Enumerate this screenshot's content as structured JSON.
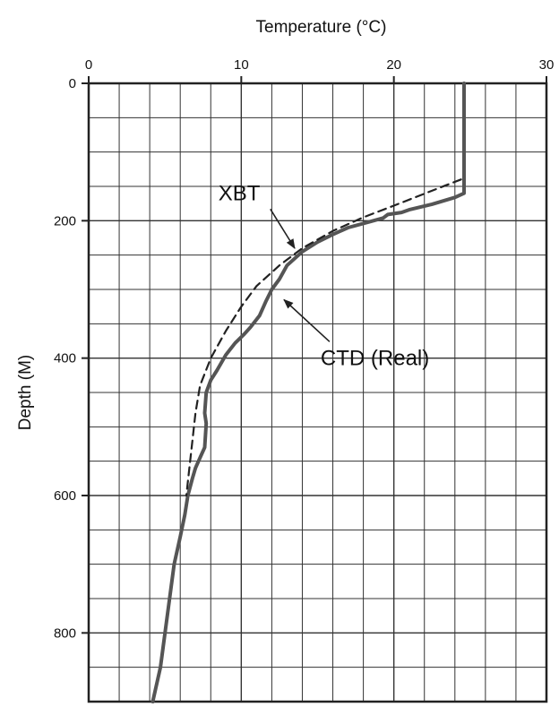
{
  "chart_data": {
    "type": "line",
    "title": "",
    "xlabel": "Temperature (°C)",
    "ylabel": "Depth (M)",
    "x_axis_position": "top",
    "y_axis_inverted": true,
    "xlim": [
      0,
      30
    ],
    "ylim": [
      0,
      900
    ],
    "xticks": [
      0,
      10,
      20,
      30
    ],
    "yticks": [
      0,
      200,
      400,
      600,
      800
    ],
    "x_minor_step": 2,
    "y_minor_step": 50,
    "grid": true,
    "series": [
      {
        "name": "CTD (Real)",
        "style": "solid",
        "color": "#555555",
        "points": [
          [
            24.6,
            0
          ],
          [
            24.6,
            160
          ],
          [
            24.0,
            166
          ],
          [
            22.5,
            176
          ],
          [
            21.0,
            184
          ],
          [
            20.5,
            188
          ],
          [
            19.6,
            191
          ],
          [
            19.3,
            196
          ],
          [
            18.5,
            201
          ],
          [
            17.0,
            210
          ],
          [
            16.0,
            220
          ],
          [
            15.0,
            231
          ],
          [
            14.0,
            245
          ],
          [
            13.0,
            265
          ],
          [
            12.5,
            285
          ],
          [
            12.0,
            300
          ],
          [
            11.6,
            318
          ],
          [
            11.2,
            338
          ],
          [
            10.6,
            355
          ],
          [
            10.2,
            365
          ],
          [
            9.6,
            378
          ],
          [
            9.0,
            395
          ],
          [
            8.4,
            418
          ],
          [
            8.0,
            432
          ],
          [
            7.7,
            450
          ],
          [
            7.6,
            480
          ],
          [
            7.7,
            495
          ],
          [
            7.6,
            530
          ],
          [
            7.3,
            545
          ],
          [
            7.0,
            560
          ],
          [
            6.8,
            575
          ],
          [
            6.5,
            600
          ],
          [
            6.3,
            628
          ],
          [
            6.0,
            660
          ],
          [
            5.6,
            700
          ],
          [
            5.3,
            750
          ],
          [
            5.0,
            800
          ],
          [
            4.7,
            850
          ],
          [
            4.2,
            900
          ]
        ]
      },
      {
        "name": "XBT",
        "style": "dashed",
        "color": "#222222",
        "points": [
          [
            24.4,
            140
          ],
          [
            23.0,
            152
          ],
          [
            21.5,
            165
          ],
          [
            20.0,
            178
          ],
          [
            18.0,
            195
          ],
          [
            16.0,
            215
          ],
          [
            14.0,
            240
          ],
          [
            12.5,
            265
          ],
          [
            11.0,
            295
          ],
          [
            10.0,
            325
          ],
          [
            9.0,
            360
          ],
          [
            8.0,
            400
          ],
          [
            7.3,
            440
          ],
          [
            7.0,
            480
          ],
          [
            6.8,
            520
          ],
          [
            6.6,
            560
          ],
          [
            6.4,
            600
          ]
        ]
      }
    ],
    "annotations": [
      {
        "text": "XBT",
        "x": 8.5,
        "y": 170,
        "arrow_to": [
          13.5,
          240
        ]
      },
      {
        "text": "CTD (Real)",
        "x": 15.2,
        "y": 410,
        "arrow_to": [
          12.8,
          315
        ]
      }
    ]
  }
}
